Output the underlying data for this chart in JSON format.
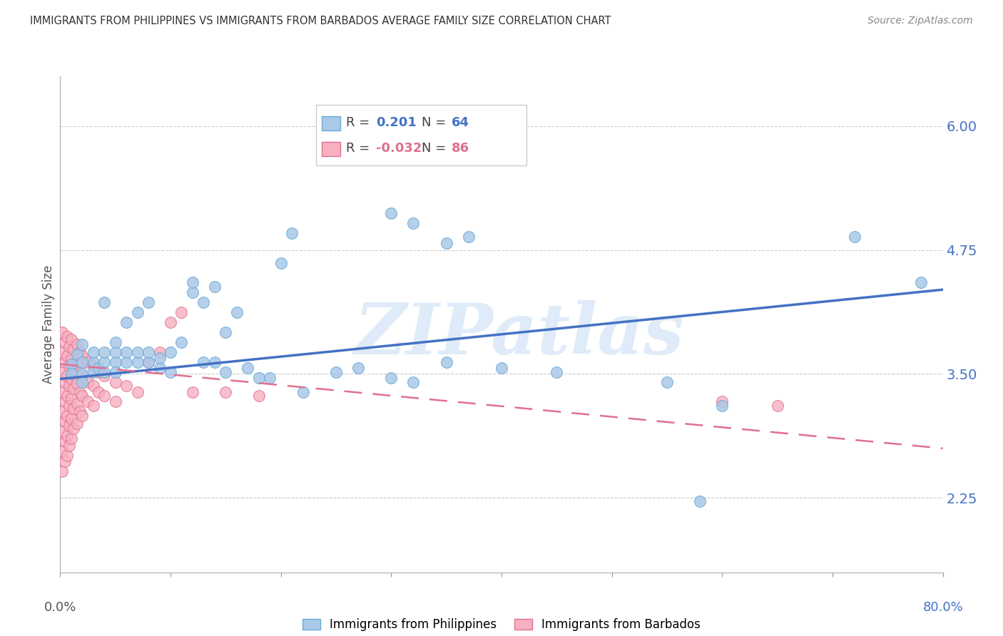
{
  "title": "IMMIGRANTS FROM PHILIPPINES VS IMMIGRANTS FROM BARBADOS AVERAGE FAMILY SIZE CORRELATION CHART",
  "source": "Source: ZipAtlas.com",
  "ylabel": "Average Family Size",
  "yticks": [
    2.25,
    3.5,
    4.75,
    6.0
  ],
  "ylim": [
    1.5,
    6.5
  ],
  "xlim": [
    0.0,
    0.8
  ],
  "watermark": "ZIPatlas",
  "philippines_scatter": [
    [
      0.01,
      3.6
    ],
    [
      0.01,
      3.5
    ],
    [
      0.015,
      3.7
    ],
    [
      0.02,
      3.5
    ],
    [
      0.02,
      3.62
    ],
    [
      0.02,
      3.8
    ],
    [
      0.02,
      3.42
    ],
    [
      0.03,
      3.52
    ],
    [
      0.03,
      3.62
    ],
    [
      0.03,
      3.72
    ],
    [
      0.035,
      3.56
    ],
    [
      0.04,
      3.62
    ],
    [
      0.04,
      3.52
    ],
    [
      0.04,
      3.72
    ],
    [
      0.04,
      4.22
    ],
    [
      0.05,
      3.62
    ],
    [
      0.05,
      3.72
    ],
    [
      0.05,
      3.52
    ],
    [
      0.05,
      3.82
    ],
    [
      0.06,
      3.62
    ],
    [
      0.06,
      3.72
    ],
    [
      0.06,
      4.02
    ],
    [
      0.07,
      3.62
    ],
    [
      0.07,
      3.72
    ],
    [
      0.07,
      4.12
    ],
    [
      0.08,
      3.62
    ],
    [
      0.08,
      3.72
    ],
    [
      0.08,
      4.22
    ],
    [
      0.09,
      3.56
    ],
    [
      0.09,
      3.66
    ],
    [
      0.1,
      3.52
    ],
    [
      0.1,
      3.72
    ],
    [
      0.11,
      3.82
    ],
    [
      0.12,
      4.32
    ],
    [
      0.12,
      4.42
    ],
    [
      0.13,
      3.62
    ],
    [
      0.13,
      4.22
    ],
    [
      0.14,
      3.62
    ],
    [
      0.14,
      4.38
    ],
    [
      0.15,
      3.52
    ],
    [
      0.15,
      3.92
    ],
    [
      0.16,
      4.12
    ],
    [
      0.17,
      3.56
    ],
    [
      0.18,
      3.46
    ],
    [
      0.19,
      3.46
    ],
    [
      0.2,
      4.62
    ],
    [
      0.21,
      4.92
    ],
    [
      0.22,
      3.32
    ],
    [
      0.25,
      3.52
    ],
    [
      0.27,
      3.56
    ],
    [
      0.3,
      3.46
    ],
    [
      0.32,
      3.42
    ],
    [
      0.35,
      3.62
    ],
    [
      0.3,
      5.12
    ],
    [
      0.32,
      5.02
    ],
    [
      0.35,
      4.82
    ],
    [
      0.37,
      4.88
    ],
    [
      0.4,
      3.56
    ],
    [
      0.45,
      3.52
    ],
    [
      0.55,
      3.42
    ],
    [
      0.58,
      2.22
    ],
    [
      0.6,
      3.18
    ],
    [
      0.72,
      4.88
    ],
    [
      0.78,
      4.42
    ]
  ],
  "barbados_scatter": [
    [
      0.002,
      3.92
    ],
    [
      0.002,
      3.72
    ],
    [
      0.002,
      3.52
    ],
    [
      0.002,
      3.32
    ],
    [
      0.002,
      3.12
    ],
    [
      0.002,
      2.92
    ],
    [
      0.002,
      2.72
    ],
    [
      0.002,
      2.52
    ],
    [
      0.004,
      3.82
    ],
    [
      0.004,
      3.62
    ],
    [
      0.004,
      3.42
    ],
    [
      0.004,
      3.22
    ],
    [
      0.004,
      3.02
    ],
    [
      0.004,
      2.82
    ],
    [
      0.004,
      2.62
    ],
    [
      0.006,
      3.88
    ],
    [
      0.006,
      3.68
    ],
    [
      0.006,
      3.48
    ],
    [
      0.006,
      3.28
    ],
    [
      0.006,
      3.08
    ],
    [
      0.006,
      2.88
    ],
    [
      0.006,
      2.68
    ],
    [
      0.008,
      3.78
    ],
    [
      0.008,
      3.58
    ],
    [
      0.008,
      3.38
    ],
    [
      0.008,
      3.18
    ],
    [
      0.008,
      2.98
    ],
    [
      0.008,
      2.78
    ],
    [
      0.01,
      3.85
    ],
    [
      0.01,
      3.65
    ],
    [
      0.01,
      3.45
    ],
    [
      0.01,
      3.25
    ],
    [
      0.01,
      3.05
    ],
    [
      0.01,
      2.85
    ],
    [
      0.012,
      3.75
    ],
    [
      0.012,
      3.55
    ],
    [
      0.012,
      3.35
    ],
    [
      0.012,
      3.15
    ],
    [
      0.012,
      2.95
    ],
    [
      0.015,
      3.8
    ],
    [
      0.015,
      3.6
    ],
    [
      0.015,
      3.4
    ],
    [
      0.015,
      3.2
    ],
    [
      0.015,
      3.0
    ],
    [
      0.018,
      3.72
    ],
    [
      0.018,
      3.52
    ],
    [
      0.018,
      3.32
    ],
    [
      0.018,
      3.12
    ],
    [
      0.02,
      3.68
    ],
    [
      0.02,
      3.48
    ],
    [
      0.02,
      3.28
    ],
    [
      0.02,
      3.08
    ],
    [
      0.025,
      3.62
    ],
    [
      0.025,
      3.42
    ],
    [
      0.025,
      3.22
    ],
    [
      0.03,
      3.58
    ],
    [
      0.03,
      3.38
    ],
    [
      0.03,
      3.18
    ],
    [
      0.035,
      3.52
    ],
    [
      0.035,
      3.32
    ],
    [
      0.04,
      3.48
    ],
    [
      0.04,
      3.28
    ],
    [
      0.05,
      3.42
    ],
    [
      0.05,
      3.22
    ],
    [
      0.06,
      3.38
    ],
    [
      0.07,
      3.32
    ],
    [
      0.08,
      3.62
    ],
    [
      0.09,
      3.72
    ],
    [
      0.1,
      4.02
    ],
    [
      0.11,
      4.12
    ],
    [
      0.12,
      3.32
    ],
    [
      0.15,
      3.32
    ],
    [
      0.18,
      3.28
    ],
    [
      0.6,
      3.22
    ],
    [
      0.65,
      3.18
    ]
  ],
  "blue_line_x": [
    0.0,
    0.8
  ],
  "blue_line_y": [
    3.45,
    4.35
  ],
  "pink_line_x": [
    0.0,
    0.8
  ],
  "pink_line_y": [
    3.6,
    2.75
  ],
  "bg_color": "#ffffff",
  "title_color": "#333333",
  "axis_color": "#4472c4",
  "grid_color": "#cccccc",
  "blue_dot_color": "#aac8e8",
  "blue_dot_edge": "#6aaad4",
  "pink_dot_color": "#f7b0c0",
  "pink_dot_edge": "#e07090",
  "blue_line_color": "#4472c4",
  "pink_line_color": "#e07090"
}
